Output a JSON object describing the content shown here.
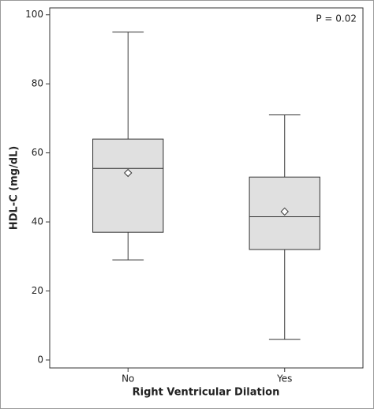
{
  "chart_data": {
    "type": "box",
    "x_label": "Right Ventricular Dilation",
    "y_label": "HDL-C (mg/dL)",
    "annotation": "P = 0.02",
    "categories": [
      "No",
      "Yes"
    ],
    "boxes": [
      {
        "min": 29,
        "q1": 37,
        "median": 55.5,
        "q3": 64,
        "max": 95,
        "mean": 54.2
      },
      {
        "min": 6,
        "q1": 32,
        "median": 41.5,
        "q3": 53,
        "max": 71,
        "mean": 43
      }
    ],
    "color": "#e0e0e0",
    "ylim": [
      -2.3,
      102
    ],
    "yticks": [
      0,
      20,
      40,
      60,
      80,
      100
    ]
  }
}
